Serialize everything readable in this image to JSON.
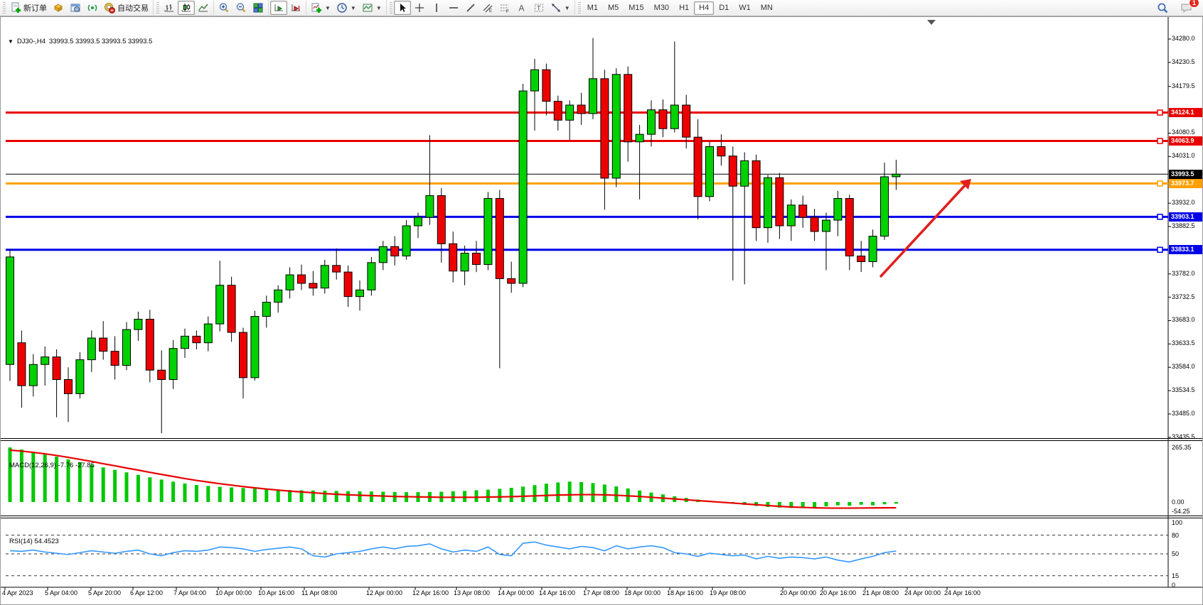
{
  "toolbar": {
    "new_order_label": "新订单",
    "auto_trading_label": "自动交易",
    "timeframes": [
      "M1",
      "M5",
      "M15",
      "M30",
      "H1",
      "H4",
      "D1",
      "W1",
      "MN"
    ],
    "active_timeframe": "H4",
    "chat_badge": "1",
    "icons": [
      "new-order-icon",
      "charts-profile-icon",
      "market-watch-icon",
      "signals-icon",
      "auto-trading-icon",
      "bar-chart-icon",
      "candlestick-chart-icon",
      "line-chart-icon",
      "zoom-in-icon",
      "zoom-out-icon",
      "tile-windows-icon",
      "auto-scroll-icon",
      "chart-shift-icon",
      "indicators-icon",
      "periods-icon",
      "templates-icon",
      "cursor-icon",
      "crosshair-icon",
      "vertical-line-icon",
      "horizontal-line-icon",
      "trendline-icon",
      "channel-icon",
      "fibonacci-icon",
      "text-icon",
      "text-label-icon",
      "arrows-icon",
      "search-icon",
      "chat-icon"
    ]
  },
  "chart": {
    "symbol_dropdown": "▼",
    "symbol_period": "DJ30-,H4",
    "ohlc_text": "33993.5 33993.5 33993.5 33993.5",
    "current_price": "33993.5"
  },
  "macd_pane": {
    "label": "MACD(12,26,9) -7.76 -27.85",
    "scale": [
      "265.35",
      "0.00",
      "-54.25"
    ]
  },
  "rsi_pane": {
    "label": "RSI(14) 54.4523",
    "scale": [
      "100",
      "80",
      "50",
      "15",
      "0"
    ]
  },
  "price_axis_ticks": [
    "34280.0",
    "34230.5",
    "34179.5",
    "34080.5",
    "34031.0",
    "33932.0",
    "33882.5",
    "33782.0",
    "33732.5",
    "33683.0",
    "33633.5",
    "33584.0",
    "33534.5",
    "33485.0",
    "33435.5"
  ],
  "date_axis_labels": [
    "4 Apr 2023",
    "5 Apr 04:00",
    "5 Apr 20:00",
    "6 Apr 12:00",
    "7 Apr 04:00",
    "10 Apr 00:00",
    "10 Apr 16:00",
    "11 Apr 08:00",
    "12 Apr 00:00",
    "12 Apr 16:00",
    "13 Apr 08:00",
    "14 Apr 00:00",
    "14 Apr 16:00",
    "17 Apr 08:00",
    "18 Apr 00:00",
    "18 Apr 16:00",
    "19 Apr 08:00",
    "20 Apr 00:00",
    "20 Apr 16:00",
    "21 Apr 08:00",
    "24 Apr 00:00",
    "24 Apr 16:00"
  ],
  "colors": {
    "bull": "#00d200",
    "bear": "#ee0000",
    "resistance": "#e80000",
    "orange_level": "#ffa000",
    "support": "#0000e8",
    "bid_line": "#000000",
    "macd_hist": "#00c800",
    "macd_signal": "#e80000",
    "rsi_line": "#3399ff",
    "annotation_arrow": "#e02020"
  },
  "chart_data": {
    "type": "candlestick",
    "symbol": "DJ30-",
    "timeframe": "H4",
    "displayed_ohlc": {
      "open": 33993.5,
      "high": 33993.5,
      "low": 33993.5,
      "close": 33993.5
    },
    "price_axis_range": [
      33435.5,
      34280.0
    ],
    "horizontal_levels": [
      {
        "price": 34124.1,
        "label": "34124.1",
        "color": "#e80000",
        "kind": "resistance"
      },
      {
        "price": 34063.9,
        "label": "34063.9",
        "color": "#e80000",
        "kind": "resistance"
      },
      {
        "price": 33973.7,
        "label": "33973.7",
        "color": "#ffa000",
        "kind": "pivot"
      },
      {
        "price": 33903.1,
        "label": "33903.1",
        "color": "#0000e8",
        "kind": "support"
      },
      {
        "price": 33833.1,
        "label": "33833.1",
        "color": "#0000e8",
        "kind": "support"
      }
    ],
    "bid_price": 33993.5,
    "candles_ohlc": [
      [
        33590,
        33835,
        33555,
        33818
      ],
      [
        33636,
        33662,
        33498,
        33545
      ],
      [
        33545,
        33612,
        33522,
        33590
      ],
      [
        33590,
        33628,
        33545,
        33606
      ],
      [
        33606,
        33622,
        33478,
        33558
      ],
      [
        33558,
        33584,
        33468,
        33528
      ],
      [
        33528,
        33616,
        33518,
        33600
      ],
      [
        33600,
        33662,
        33574,
        33646
      ],
      [
        33646,
        33682,
        33600,
        33618
      ],
      [
        33618,
        33650,
        33558,
        33588
      ],
      [
        33588,
        33680,
        33578,
        33664
      ],
      [
        33664,
        33702,
        33640,
        33686
      ],
      [
        33686,
        33706,
        33552,
        33578
      ],
      [
        33578,
        33620,
        33444,
        33558
      ],
      [
        33558,
        33642,
        33538,
        33624
      ],
      [
        33624,
        33666,
        33604,
        33650
      ],
      [
        33650,
        33662,
        33622,
        33636
      ],
      [
        33636,
        33692,
        33618,
        33676
      ],
      [
        33676,
        33810,
        33660,
        33758
      ],
      [
        33758,
        33776,
        33638,
        33658
      ],
      [
        33658,
        33668,
        33518,
        33562
      ],
      [
        33562,
        33704,
        33556,
        33692
      ],
      [
        33692,
        33736,
        33668,
        33722
      ],
      [
        33722,
        33758,
        33700,
        33748
      ],
      [
        33748,
        33796,
        33730,
        33780
      ],
      [
        33780,
        33802,
        33748,
        33762
      ],
      [
        33762,
        33788,
        33736,
        33752
      ],
      [
        33752,
        33812,
        33740,
        33800
      ],
      [
        33800,
        33836,
        33770,
        33786
      ],
      [
        33786,
        33800,
        33712,
        33734
      ],
      [
        33734,
        33768,
        33704,
        33748
      ],
      [
        33748,
        33818,
        33736,
        33806
      ],
      [
        33806,
        33852,
        33790,
        33840
      ],
      [
        33840,
        33862,
        33800,
        33820
      ],
      [
        33820,
        33896,
        33812,
        33884
      ],
      [
        33884,
        33912,
        33858,
        33902
      ],
      [
        33902,
        34076,
        33886,
        33948
      ],
      [
        33948,
        33964,
        33806,
        33846
      ],
      [
        33846,
        33872,
        33764,
        33788
      ],
      [
        33788,
        33842,
        33758,
        33826
      ],
      [
        33826,
        33852,
        33786,
        33802
      ],
      [
        33802,
        33956,
        33790,
        33942
      ],
      [
        33942,
        33960,
        33582,
        33772
      ],
      [
        33772,
        33808,
        33742,
        33762
      ],
      [
        33762,
        34185,
        33754,
        34170
      ],
      [
        34170,
        34238,
        34086,
        34215
      ],
      [
        34215,
        34228,
        34118,
        34148
      ],
      [
        34148,
        34160,
        34086,
        34108
      ],
      [
        34108,
        34150,
        34066,
        34140
      ],
      [
        34140,
        34166,
        34098,
        34122
      ],
      [
        34122,
        34282,
        34110,
        34196
      ],
      [
        34196,
        34215,
        33918,
        33985
      ],
      [
        33985,
        34218,
        33966,
        34205
      ],
      [
        34205,
        34222,
        34020,
        34062
      ],
      [
        34062,
        34098,
        33940,
        34078
      ],
      [
        34078,
        34150,
        34052,
        34130
      ],
      [
        34130,
        34152,
        34072,
        34090
      ],
      [
        34090,
        34275,
        34082,
        34140
      ],
      [
        34140,
        34162,
        34048,
        34072
      ],
      [
        34072,
        34110,
        33898,
        33946
      ],
      [
        33946,
        34064,
        33936,
        34052
      ],
      [
        34052,
        34078,
        34012,
        34032
      ],
      [
        34032,
        34052,
        33768,
        33968
      ],
      [
        33968,
        34040,
        33760,
        34022
      ],
      [
        34022,
        34035,
        33852,
        33880
      ],
      [
        33880,
        33992,
        33848,
        33986
      ],
      [
        33986,
        33996,
        33856,
        33884
      ],
      [
        33884,
        33940,
        33852,
        33928
      ],
      [
        33928,
        33948,
        33880,
        33902
      ],
      [
        33902,
        33920,
        33852,
        33872
      ],
      [
        33872,
        33912,
        33790,
        33896
      ],
      [
        33896,
        33958,
        33862,
        33942
      ],
      [
        33942,
        33950,
        33790,
        33820
      ],
      [
        33820,
        33852,
        33786,
        33808
      ],
      [
        33808,
        33876,
        33796,
        33862
      ],
      [
        33862,
        34018,
        33854,
        33988
      ],
      [
        33988,
        34024,
        33960,
        33993.5
      ]
    ],
    "macd": {
      "label": "MACD(12,26,9)",
      "main_value": -7.76,
      "signal_value": -27.85,
      "scale_max": 265.35,
      "scale_min": -54.25,
      "histogram": [
        265,
        255,
        244,
        232,
        220,
        207,
        194,
        181,
        168,
        156,
        144,
        132,
        120,
        109,
        99,
        90,
        83,
        78,
        74,
        71,
        68,
        65,
        62,
        60,
        58,
        57,
        56,
        55,
        54,
        53,
        52,
        51,
        50,
        49,
        48,
        48,
        49,
        50,
        52,
        54,
        57,
        60,
        64,
        69,
        75,
        82,
        89,
        95,
        99,
        97,
        92,
        85,
        76,
        66,
        56,
        46,
        37,
        28,
        20,
        12,
        5,
        -2,
        -8,
        -14,
        -19,
        -24,
        -27,
        -29,
        -28,
        -25,
        -21,
        -16,
        -18,
        -13,
        -16,
        -11,
        -7.76
      ],
      "signal": [
        252,
        247,
        241,
        234,
        226,
        217,
        207,
        197,
        186,
        176,
        165,
        155,
        144,
        134,
        124,
        114,
        105,
        97,
        89,
        82,
        75,
        69,
        63,
        58,
        53,
        49,
        45,
        41,
        38,
        35,
        33,
        31,
        29,
        27,
        26,
        25,
        24,
        23,
        23,
        23,
        23,
        24,
        25,
        26,
        28,
        30,
        32,
        34,
        35,
        36,
        36,
        35,
        33,
        30,
        27,
        23,
        19,
        15,
        11,
        7,
        3,
        -1,
        -5,
        -9,
        -13,
        -17,
        -21,
        -24,
        -26,
        -28,
        -29,
        -29.5,
        -29.5,
        -29,
        -28.5,
        -28,
        -27.85
      ]
    },
    "rsi": {
      "label": "RSI(14)",
      "value": 54.4523,
      "levels": [
        80,
        50,
        15
      ],
      "series": [
        55,
        54,
        56,
        53,
        51,
        49,
        52,
        55,
        53,
        51,
        54,
        56,
        50,
        47,
        52,
        55,
        54,
        56,
        61,
        60,
        58,
        54,
        57,
        59,
        61,
        58,
        47,
        45,
        50,
        52,
        54,
        58,
        61,
        58,
        62,
        63,
        66,
        58,
        53,
        56,
        54,
        61,
        49,
        47,
        67,
        69,
        64,
        61,
        58,
        62,
        60,
        55,
        63,
        58,
        61,
        63,
        60,
        52,
        50,
        46,
        51,
        49,
        47,
        48,
        42,
        46,
        43,
        45,
        44,
        42,
        45,
        40,
        37,
        42,
        46,
        52,
        54.45
      ]
    },
    "annotation_arrow": {
      "from_xy": [
        1238,
        390
      ],
      "to_xy": [
        1366,
        252
      ]
    }
  }
}
